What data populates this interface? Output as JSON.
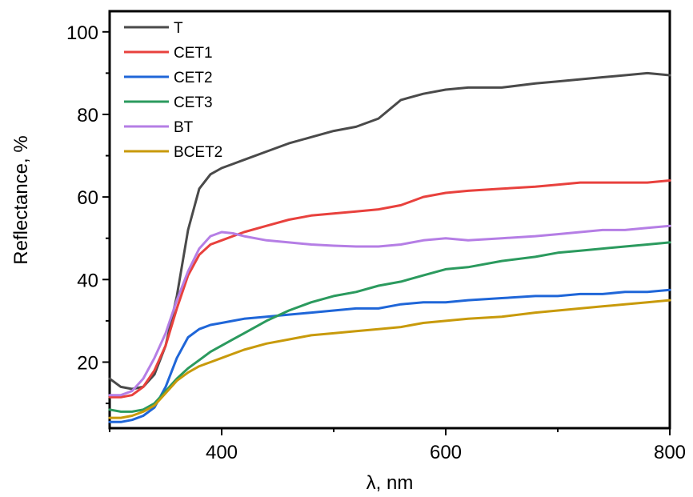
{
  "chart_data": {
    "type": "line",
    "xlabel": "λ, nm",
    "ylabel": "Reflectance, %",
    "xlim": [
      300,
      800
    ],
    "ylim": [
      4,
      105
    ],
    "xticks": [
      400,
      600,
      800
    ],
    "yticks": [
      20,
      40,
      60,
      80,
      100
    ],
    "legend_position": "top-left",
    "grid": false,
    "series": [
      {
        "name": "T",
        "color": "#4a4a4a",
        "x": [
          300,
          310,
          320,
          330,
          340,
          350,
          360,
          370,
          380,
          390,
          400,
          410,
          420,
          440,
          460,
          480,
          500,
          520,
          540,
          560,
          580,
          600,
          620,
          650,
          680,
          700,
          720,
          740,
          760,
          780,
          800
        ],
        "y": [
          16,
          14,
          13.5,
          14,
          17,
          24,
          36,
          52,
          62,
          65.5,
          67,
          68,
          69,
          71,
          73,
          74.5,
          76,
          77,
          79,
          83.5,
          85,
          86,
          86.5,
          86.5,
          87.5,
          88,
          88.5,
          89,
          89.5,
          90,
          89.5
        ]
      },
      {
        "name": "CET1",
        "color": "#e8413d",
        "x": [
          300,
          310,
          320,
          330,
          340,
          350,
          360,
          370,
          380,
          390,
          400,
          410,
          420,
          440,
          460,
          480,
          500,
          520,
          540,
          560,
          580,
          600,
          620,
          650,
          680,
          700,
          720,
          740,
          760,
          780,
          800
        ],
        "y": [
          11.5,
          11.5,
          12,
          14,
          18,
          24,
          33,
          41,
          46,
          48.5,
          49.5,
          50.5,
          51.5,
          53,
          54.5,
          55.5,
          56,
          56.5,
          57,
          58,
          60,
          61,
          61.5,
          62,
          62.5,
          63,
          63.5,
          63.5,
          63.5,
          63.5,
          64
        ]
      },
      {
        "name": "CET2",
        "color": "#1f66d8",
        "x": [
          300,
          310,
          320,
          330,
          340,
          350,
          360,
          370,
          380,
          390,
          400,
          410,
          420,
          440,
          460,
          480,
          500,
          520,
          540,
          560,
          580,
          600,
          620,
          650,
          680,
          700,
          720,
          740,
          760,
          780,
          800
        ],
        "y": [
          5.5,
          5.5,
          6,
          7,
          9,
          14,
          21,
          26,
          28,
          29,
          29.5,
          30,
          30.5,
          31,
          31.5,
          32,
          32.5,
          33,
          33,
          34,
          34.5,
          34.5,
          35,
          35.5,
          36,
          36,
          36.5,
          36.5,
          37,
          37,
          37.5
        ]
      },
      {
        "name": "CET3",
        "color": "#2b9a5e",
        "x": [
          300,
          310,
          320,
          330,
          340,
          350,
          360,
          370,
          380,
          390,
          400,
          410,
          420,
          440,
          460,
          480,
          500,
          520,
          540,
          560,
          580,
          600,
          620,
          650,
          680,
          700,
          720,
          740,
          760,
          780,
          800
        ],
        "y": [
          8.5,
          8,
          8,
          8.5,
          10,
          13,
          16,
          18.5,
          20.5,
          22.5,
          24,
          25.5,
          27,
          30,
          32.5,
          34.5,
          36,
          37,
          38.5,
          39.5,
          41,
          42.5,
          43,
          44.5,
          45.5,
          46.5,
          47,
          47.5,
          48,
          48.5,
          49
        ]
      },
      {
        "name": "BT",
        "color": "#b57ee5",
        "x": [
          300,
          310,
          320,
          330,
          340,
          350,
          360,
          370,
          380,
          390,
          400,
          410,
          420,
          440,
          460,
          480,
          500,
          520,
          540,
          560,
          580,
          600,
          620,
          650,
          680,
          700,
          720,
          740,
          760,
          780,
          800
        ],
        "y": [
          12,
          12,
          13,
          16,
          21,
          27,
          35,
          42,
          47.5,
          50.5,
          51.5,
          51.2,
          50.5,
          49.5,
          49,
          48.5,
          48.2,
          48,
          48,
          48.5,
          49.5,
          50,
          49.5,
          50,
          50.5,
          51,
          51.5,
          52,
          52,
          52.5,
          53
        ]
      },
      {
        "name": "BCET2",
        "color": "#c89a0b",
        "x": [
          300,
          310,
          320,
          330,
          340,
          350,
          360,
          370,
          380,
          390,
          400,
          410,
          420,
          440,
          460,
          480,
          500,
          520,
          540,
          560,
          580,
          600,
          620,
          650,
          680,
          700,
          720,
          740,
          760,
          780,
          800
        ],
        "y": [
          6.5,
          6.5,
          7,
          8,
          9.5,
          12.5,
          15.5,
          17.5,
          19,
          20,
          21,
          22,
          23,
          24.5,
          25.5,
          26.5,
          27,
          27.5,
          28,
          28.5,
          29.5,
          30,
          30.5,
          31,
          32,
          32.5,
          33,
          33.5,
          34,
          34.5,
          35
        ]
      }
    ]
  }
}
